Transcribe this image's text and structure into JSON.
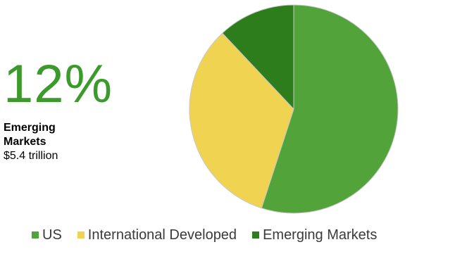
{
  "callout": {
    "value": "12%",
    "label": "Emerging Markets",
    "amount": "$5.4 trillion",
    "color": "#3a9a2a"
  },
  "chart_data": {
    "type": "pie",
    "categories": [
      "US",
      "International Developed",
      "Emerging Markets"
    ],
    "values": [
      55,
      33,
      12
    ],
    "colors": [
      "#52a33a",
      "#f0d350",
      "#2e7d1d"
    ],
    "start_angle_deg": 0,
    "direction": "clockwise",
    "slice_border_color": "#c8c8c8",
    "legend_placement": "bottom"
  }
}
